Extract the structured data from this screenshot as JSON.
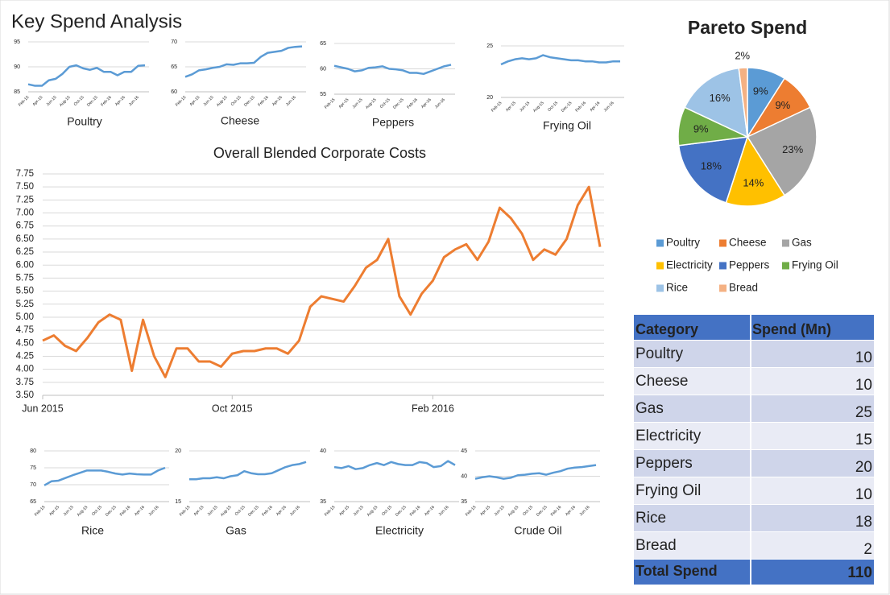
{
  "title": "Key Spend Analysis",
  "chart_data": [
    {
      "type": "line",
      "title": "Poultry",
      "color": "#5b9bd5",
      "ylim": [
        85,
        95
      ],
      "yticks": [
        85,
        90,
        95
      ],
      "grid": true,
      "categories": [
        "Feb-15",
        null,
        "Apr-15",
        null,
        "Jun-15",
        null,
        "Aug-15",
        null,
        "Oct-15",
        null,
        "Dec-15",
        null,
        "Feb-16",
        null,
        "Apr-16",
        null,
        "Jun-16",
        null
      ],
      "values": [
        86.5,
        86.2,
        86.2,
        87.3,
        87.6,
        88.6,
        90,
        90.3,
        89.7,
        89.4,
        89.8,
        89,
        89,
        88.3,
        89,
        89,
        90.2,
        90.3
      ]
    },
    {
      "type": "line",
      "title": "Cheese",
      "color": "#5b9bd5",
      "ylim": [
        60,
        70
      ],
      "yticks": [
        60,
        65,
        70
      ],
      "grid": true,
      "categories": [
        "Feb-15",
        null,
        "Apr-15",
        null,
        "Jun-15",
        null,
        "Aug-15",
        null,
        "Oct-15",
        null,
        "Dec-15",
        null,
        "Feb-16",
        null,
        "Apr-16",
        null,
        "Jun-16",
        null
      ],
      "values": [
        63,
        63.5,
        64.3,
        64.5,
        64.8,
        65,
        65.5,
        65.4,
        65.7,
        65.7,
        65.8,
        67,
        67.8,
        68,
        68.2,
        68.8,
        69,
        69.1
      ]
    },
    {
      "type": "line",
      "title": "Peppers",
      "color": "#5b9bd5",
      "ylim": [
        55,
        65
      ],
      "yticks": [
        55,
        60,
        65
      ],
      "grid": true,
      "categories": [
        "Feb-15",
        null,
        "Apr-15",
        null,
        "Jun-15",
        null,
        "Aug-15",
        null,
        "Oct-15",
        null,
        "Dec-15",
        null,
        "Feb-16",
        null,
        "Apr-16",
        null,
        "Jun-16",
        null
      ],
      "values": [
        60.6,
        60.3,
        60,
        59.5,
        59.7,
        60.2,
        60.3,
        60.5,
        60,
        59.9,
        59.7,
        59.2,
        59.2,
        59,
        59.5,
        60,
        60.5,
        60.8
      ]
    },
    {
      "type": "line",
      "title": "Frying Oil",
      "color": "#5b9bd5",
      "ylim": [
        20,
        25
      ],
      "yticks": [
        20,
        25
      ],
      "grid": true,
      "categories": [
        "Feb-15",
        null,
        "Apr-15",
        null,
        "Jun-15",
        null,
        "Aug-15",
        null,
        "Oct-15",
        null,
        "Dec-15",
        null,
        "Feb-16",
        null,
        "Apr-16",
        null,
        "Jun-16",
        null
      ],
      "values": [
        23.2,
        23.5,
        23.7,
        23.8,
        23.7,
        23.8,
        24.1,
        23.9,
        23.8,
        23.7,
        23.6,
        23.6,
        23.5,
        23.5,
        23.4,
        23.4,
        23.5,
        23.5
      ]
    },
    {
      "type": "line",
      "title": "Overall Blended Corporate Costs",
      "color": "#ed7d31",
      "ylim": [
        3.5,
        7.75
      ],
      "grid": true,
      "yticks": [
        {
          "value": 3.5,
          "label": "3.50"
        },
        {
          "value": 3.75,
          "label": "3.75"
        },
        {
          "value": 4,
          "label": "4.00"
        },
        {
          "value": 4.25,
          "label": "4.25"
        },
        {
          "value": 4.5,
          "label": "4.50"
        },
        {
          "value": 4.75,
          "label": "4.75"
        },
        {
          "value": 5,
          "label": "5.00"
        },
        {
          "value": 5.25,
          "label": "5.25"
        },
        {
          "value": 5.5,
          "label": "5.50"
        },
        {
          "value": 5.75,
          "label": "5.75"
        },
        {
          "value": 6,
          "label": "6.00"
        },
        {
          "value": 6.25,
          "label": "6.25"
        },
        {
          "value": 6.5,
          "label": "6.50"
        },
        {
          "value": 6.75,
          "label": "6.75"
        },
        {
          "value": 7,
          "label": "7.00"
        },
        {
          "value": 7.25,
          "label": "7.25"
        },
        {
          "value": 7.5,
          "label": "7.50"
        },
        {
          "value": 7.75,
          "label": "7.75"
        }
      ],
      "categories": [
        "Jun 2015",
        null,
        null,
        null,
        null,
        null,
        null,
        null,
        null,
        null,
        null,
        null,
        null,
        null,
        null,
        null,
        null,
        "Oct 2015",
        null,
        null,
        null,
        null,
        null,
        null,
        null,
        null,
        null,
        null,
        null,
        null,
        null,
        null,
        null,
        null,
        null,
        "Feb 2016",
        null,
        null,
        null,
        null,
        null,
        null,
        null,
        null,
        null,
        null,
        null,
        null,
        null,
        null,
        null
      ],
      "values": [
        4.55,
        4.65,
        4.45,
        4.35,
        4.6,
        4.9,
        5.05,
        4.95,
        3.97,
        4.95,
        4.25,
        3.85,
        4.4,
        4.4,
        4.15,
        4.15,
        4.05,
        4.3,
        4.35,
        4.35,
        4.4,
        4.4,
        4.3,
        4.55,
        5.2,
        5.4,
        5.35,
        5.3,
        5.6,
        5.95,
        6.1,
        6.5,
        5.4,
        5.05,
        5.45,
        5.7,
        6.15,
        6.3,
        6.4,
        6.1,
        6.45,
        7.1,
        6.9,
        6.6,
        6.1,
        6.3,
        6.2,
        6.5,
        7.15,
        7.5,
        6.35
      ]
    },
    {
      "type": "line",
      "title": "Rice",
      "color": "#5b9bd5",
      "ylim": [
        65,
        80
      ],
      "yticks": [
        65,
        70,
        75,
        80
      ],
      "grid": true,
      "categories": [
        "Feb-15",
        null,
        "Apr-15",
        null,
        "Jun-15",
        null,
        "Aug-15",
        null,
        "Oct-15",
        null,
        "Dec-15",
        null,
        "Feb-16",
        null,
        "Apr-16",
        null,
        "Jun-16",
        null
      ],
      "values": [
        69.8,
        71,
        71.2,
        72,
        72.8,
        73.5,
        74.2,
        74.2,
        74.2,
        73.8,
        73.3,
        73,
        73.3,
        73.1,
        73,
        73,
        74.2,
        75
      ]
    },
    {
      "type": "line",
      "title": "Gas",
      "color": "#5b9bd5",
      "ylim": [
        15,
        20
      ],
      "yticks": [
        15,
        20
      ],
      "grid": true,
      "categories": [
        "Feb-15",
        null,
        "Apr-15",
        null,
        "Jun-15",
        null,
        "Aug-15",
        null,
        "Oct-15",
        null,
        "Dec-15",
        null,
        "Feb-16",
        null,
        "Apr-16",
        null,
        "Jun-16",
        null
      ],
      "values": [
        17.2,
        17.2,
        17.3,
        17.3,
        17.4,
        17.3,
        17.5,
        17.6,
        18,
        17.8,
        17.7,
        17.7,
        17.8,
        18.1,
        18.4,
        18.6,
        18.7,
        18.9
      ]
    },
    {
      "type": "line",
      "title": "Electricity",
      "color": "#5b9bd5",
      "ylim": [
        35,
        40
      ],
      "yticks": [
        35,
        40
      ],
      "grid": true,
      "categories": [
        "Feb-15",
        null,
        "Apr-15",
        null,
        "Jun-15",
        null,
        "Aug-15",
        null,
        "Oct-15",
        null,
        "Dec-15",
        null,
        "Feb-16",
        null,
        "Apr-16",
        null,
        "Jun-16",
        null
      ],
      "values": [
        38.4,
        38.3,
        38.5,
        38.2,
        38.3,
        38.6,
        38.8,
        38.6,
        38.9,
        38.7,
        38.6,
        38.6,
        38.9,
        38.8,
        38.4,
        38.5,
        39,
        38.6
      ]
    },
    {
      "type": "line",
      "title": "Crude Oil",
      "color": "#5b9bd5",
      "ylim": [
        35,
        45
      ],
      "yticks": [
        35,
        40,
        45
      ],
      "grid": true,
      "categories": [
        "Feb-15",
        null,
        "Apr-15",
        null,
        "Jun-15",
        null,
        "Aug-15",
        null,
        "Oct-15",
        null,
        "Dec-15",
        null,
        "Feb-16",
        null,
        "Apr-16",
        null,
        "Jun-16",
        null
      ],
      "values": [
        39.5,
        39.8,
        40,
        39.8,
        39.5,
        39.7,
        40.2,
        40.3,
        40.5,
        40.6,
        40.3,
        40.7,
        41,
        41.5,
        41.7,
        41.8,
        42,
        42.2
      ]
    },
    {
      "type": "pie",
      "title": "Pareto Spend",
      "categories": [
        "Poultry",
        "Cheese",
        "Gas",
        "Electricity",
        "Peppers",
        "Frying Oil",
        "Rice",
        "Bread"
      ],
      "values": [
        9,
        9,
        23,
        14,
        18,
        9,
        16,
        2
      ],
      "value_labels": [
        "9%",
        "9%",
        "23%",
        "14%",
        "18%",
        "9%",
        "16%",
        "2%"
      ],
      "colors": [
        "#5b9bd5",
        "#ed7d31",
        "#a5a5a5",
        "#ffc000",
        "#4472c4",
        "#70ad47",
        "#9dc3e6",
        "#f4b183"
      ],
      "legend": "bottom"
    }
  ],
  "table": {
    "header": [
      "Category",
      "Spend (Mn)"
    ],
    "rows": [
      [
        "Poultry",
        10
      ],
      [
        "Cheese",
        10
      ],
      [
        "Gas",
        25
      ],
      [
        "Electricity",
        15
      ],
      [
        "Peppers",
        20
      ],
      [
        "Frying Oil",
        10
      ],
      [
        "Rice",
        18
      ],
      [
        "Bread",
        2
      ]
    ],
    "footer": [
      "Total Spend",
      110
    ]
  }
}
